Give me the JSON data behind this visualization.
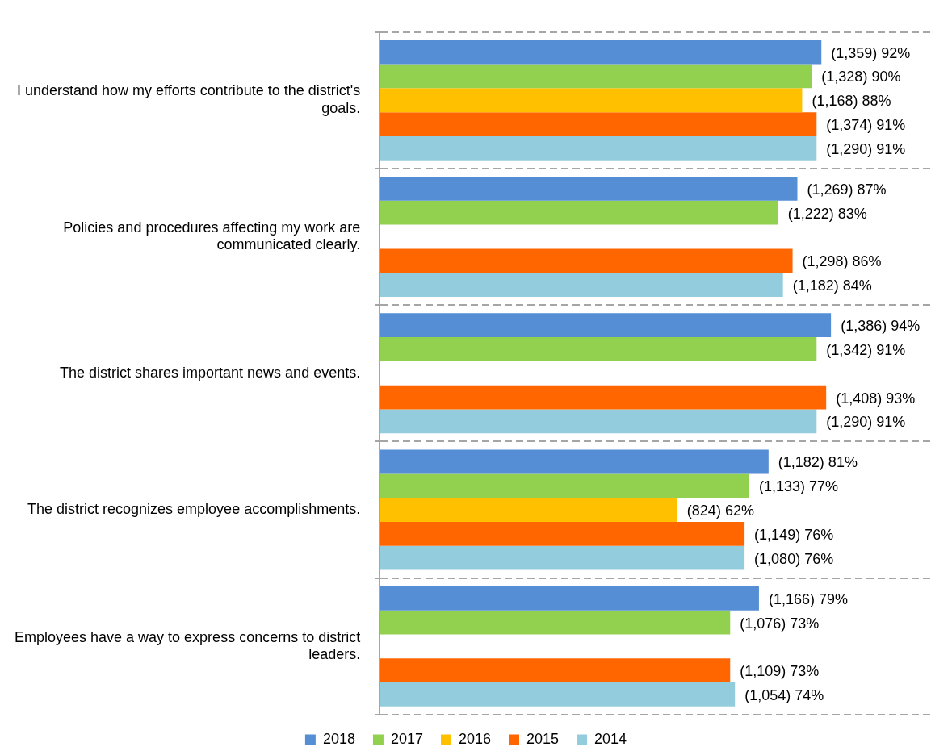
{
  "chart_data": {
    "type": "bar",
    "orientation": "horizontal",
    "categories": [
      "I understand how my efforts contribute to the district's goals.",
      "Policies and procedures affecting my work are communicated clearly.",
      "The district shares important news and events.",
      "The district recognizes employee accomplishments.",
      "Employees have a way to express concerns to district leaders."
    ],
    "series": [
      {
        "name": "2018",
        "color": "#558ed5",
        "values": [
          92,
          87,
          94,
          81,
          79
        ],
        "value_labels": [
          "(1,359) 92%",
          "(1,269) 87%",
          "(1,386) 94%",
          "(1,182) 81%",
          "(1,166) 79%"
        ]
      },
      {
        "name": "2017",
        "color": "#92d050",
        "values": [
          90,
          83,
          91,
          77,
          73
        ],
        "value_labels": [
          "(1,328) 90%",
          "(1,222) 83%",
          "(1,342) 91%",
          "(1,133) 77%",
          "(1,076) 73%"
        ]
      },
      {
        "name": "2016",
        "color": "#ffc000",
        "values": [
          88,
          null,
          null,
          62,
          null
        ],
        "value_labels": [
          "(1,168) 88%",
          null,
          null,
          "(824) 62%",
          null
        ]
      },
      {
        "name": "2015",
        "color": "#ff6600",
        "values": [
          91,
          86,
          93,
          76,
          73
        ],
        "value_labels": [
          "(1,374) 91%",
          "(1,298) 86%",
          "(1,408) 93%",
          "(1,149) 76%",
          "(1,109) 73%"
        ]
      },
      {
        "name": "2014",
        "color": "#93cddd",
        "values": [
          91,
          84,
          91,
          76,
          74
        ],
        "value_labels": [
          "(1,290) 91%",
          "(1,182) 84%",
          "(1,290) 91%",
          "(1,080) 76%",
          "(1,054) 74%"
        ]
      }
    ],
    "xlim": [
      0,
      115
    ],
    "tick_labels": "y",
    "grid": "y",
    "legend": "bottom"
  }
}
